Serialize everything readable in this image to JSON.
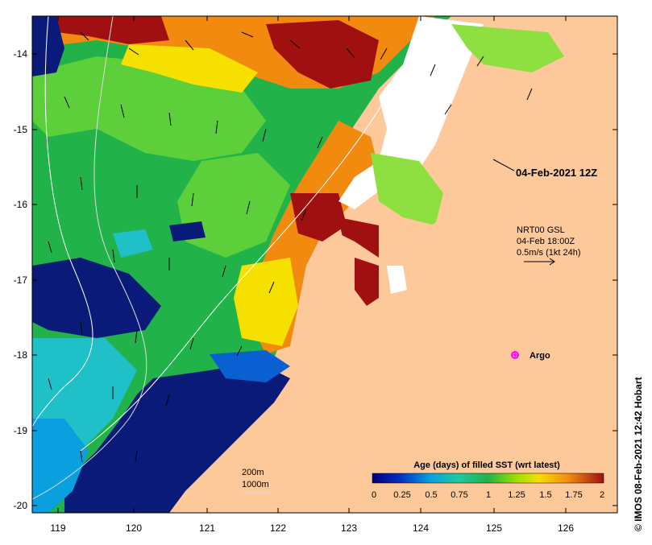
{
  "map": {
    "ylabels": [
      "-14",
      "-15",
      "-16",
      "-17",
      "-18",
      "-19",
      "-20"
    ],
    "xlabels": [
      "119",
      "120",
      "121",
      "122",
      "123",
      "124",
      "125",
      "126"
    ],
    "date_label": "04-Feb-2021 12Z",
    "current_info": {
      "line1": "NRT00 GSL",
      "line2": "04-Feb 18:00Z",
      "line3": "0.5m/s (1kt 24h)"
    },
    "argo_label": "Argo",
    "depth_legend": {
      "line1": "200m",
      "line2": "1000m"
    },
    "colorbar": {
      "title": "Age (days) of filled SST (wrt latest)",
      "ticks": [
        "0",
        "0.25",
        "0.5",
        "0.75",
        "1",
        "1.25",
        "1.5",
        "1.75",
        "2"
      ]
    },
    "credit": "© IMOS 08-Feb-2021 12:42 Hobart",
    "colors": {
      "land": "#fdc99a",
      "ocean_dark": "#0a1a78",
      "ocean_green": "#22b24a",
      "old_red": "#a01010",
      "orange": "#f28a10",
      "yellow": "#f5e000",
      "argo": "#ff00ff"
    }
  }
}
